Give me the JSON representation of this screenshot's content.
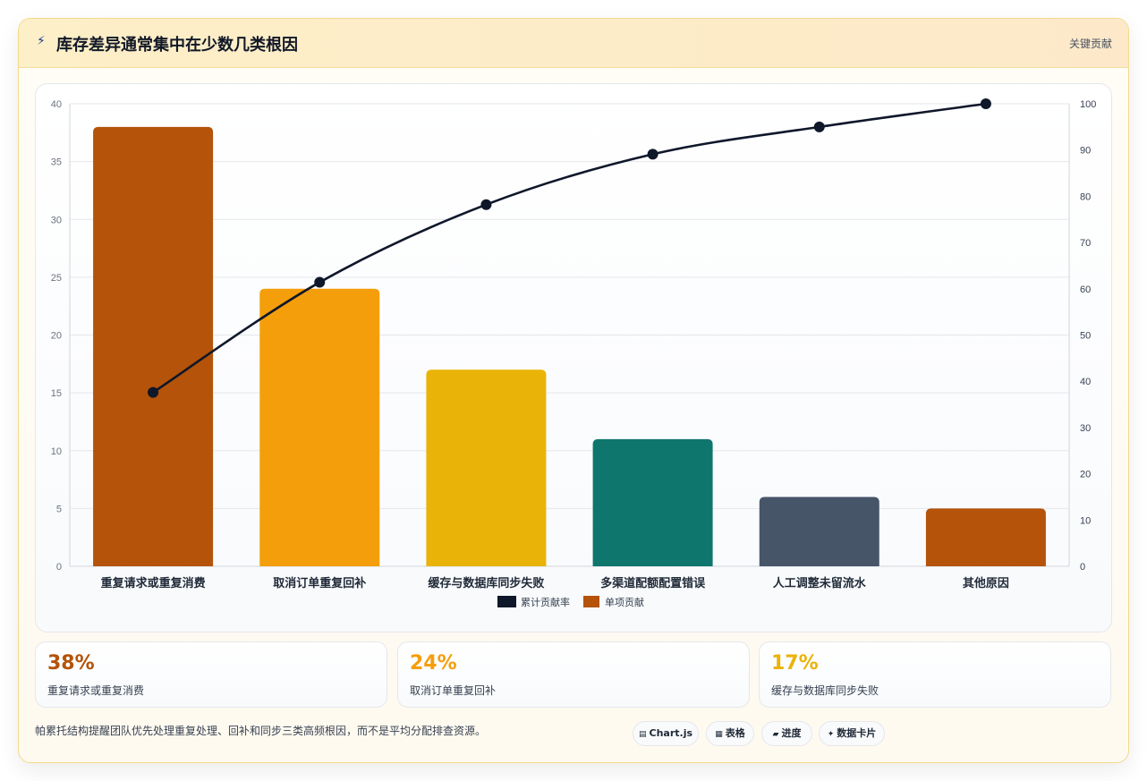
{
  "header": {
    "icon": "lightning-icon",
    "title": "库存差异通常集中在少数几类根因",
    "tag": "关键贡献"
  },
  "chart_data": {
    "type": "bar",
    "categories": [
      "重复请求或重复消费",
      "取消订单重复回补",
      "缓存与数据库同步失败",
      "多渠道配额配置错误",
      "人工调整未留流水",
      "其他原因"
    ],
    "series": [
      {
        "name": "单项贡献",
        "type": "bar",
        "axis": "left",
        "values": [
          38,
          24,
          17,
          11,
          6,
          5
        ],
        "colors": [
          "#b45309",
          "#f59e0b",
          "#eab308",
          "#0f766e",
          "#475569",
          "#b45309"
        ]
      },
      {
        "name": "累计贡献率",
        "type": "line",
        "axis": "right",
        "values": [
          37.6,
          61.4,
          78.2,
          89.1,
          95.0,
          100
        ],
        "color": "#0f172a"
      }
    ],
    "y_left": {
      "min": 0,
      "max": 40,
      "ticks": [
        0,
        5,
        10,
        15,
        20,
        25,
        30,
        35,
        40
      ]
    },
    "y_right": {
      "min": 0,
      "max": 100,
      "ticks": [
        0,
        10,
        20,
        30,
        40,
        50,
        60,
        70,
        80,
        90,
        100
      ]
    },
    "legend": {
      "position": "bottom",
      "items": [
        {
          "label": "累计贡献率",
          "color": "#0f172a"
        },
        {
          "label": "单项贡献",
          "color": "#b45309"
        }
      ]
    },
    "grid": true
  },
  "kpis": [
    {
      "value": "38%",
      "label": "重复请求或重复消费",
      "color": "#b45309"
    },
    {
      "value": "24%",
      "label": "取消订单重复回补",
      "color": "#f59e0b"
    },
    {
      "value": "17%",
      "label": "缓存与数据库同步失败",
      "color": "#eab308"
    }
  ],
  "footer": {
    "note": "帕累托结构提醒团队优先处理重复处理、回补和同步三类高频根因，而不是平均分配排查资源。",
    "chips": [
      {
        "icon": "chart-icon",
        "glyph": "▤",
        "label": "Chart.js"
      },
      {
        "icon": "table-icon",
        "glyph": "▦",
        "label": "表格"
      },
      {
        "icon": "progress-icon",
        "glyph": "▰",
        "label": "进度"
      },
      {
        "icon": "sparkle-icon",
        "glyph": "✦",
        "label": "数据卡片"
      }
    ]
  }
}
